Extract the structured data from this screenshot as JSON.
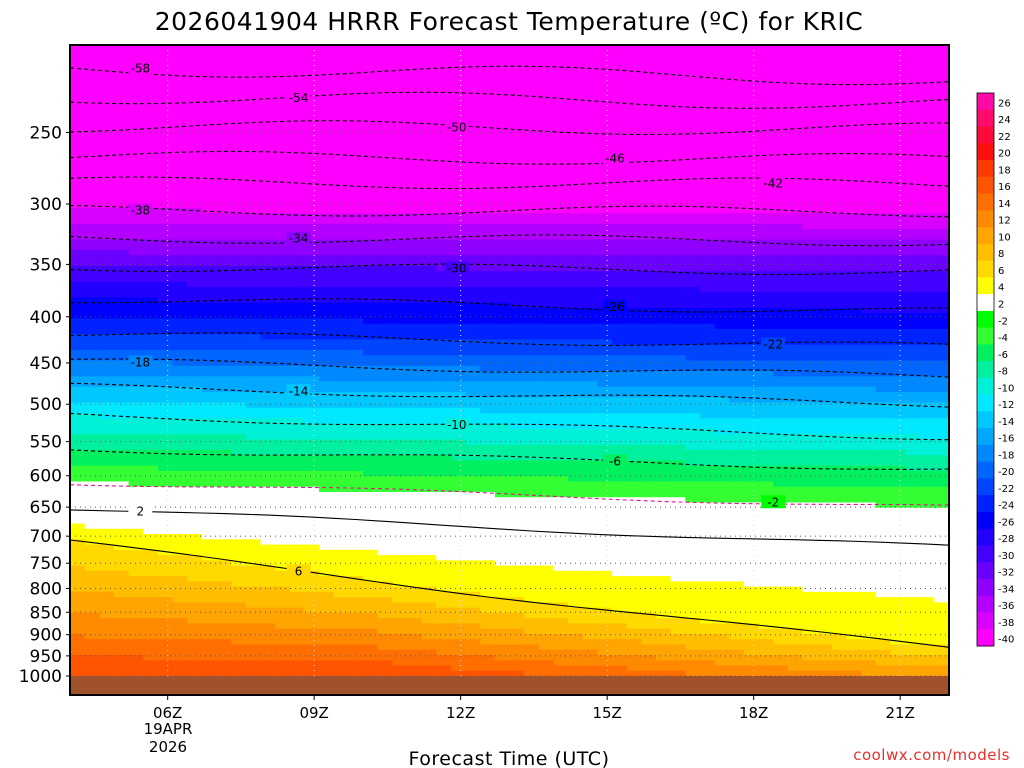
{
  "chart_data": {
    "type": "heatmap",
    "title": "2026041904 HRRR Forecast Temperature (ºC) for KRIC",
    "xlabel": "Forecast Time (UTC)",
    "ylabel": "",
    "x_ticks": [
      "06Z",
      "09Z",
      "12Z",
      "15Z",
      "18Z",
      "21Z"
    ],
    "x_date_lines": [
      "19APR",
      "2026"
    ],
    "xlim_hours": [
      4,
      22
    ],
    "y_ticks": [
      250,
      300,
      350,
      400,
      450,
      500,
      550,
      600,
      650,
      700,
      750,
      800,
      850,
      900,
      950,
      1000
    ],
    "ylim_hpa": [
      200,
      1000
    ],
    "y_scale": "log",
    "grid": true,
    "colorbar": {
      "labels": [
        26,
        24,
        22,
        20,
        18,
        16,
        14,
        12,
        10,
        8,
        6,
        4,
        2,
        -2,
        -4,
        -6,
        -8,
        -10,
        -12,
        -14,
        -16,
        -18,
        -20,
        -22,
        -24,
        -26,
        -28,
        -30,
        -32,
        -34,
        -36,
        -38,
        -40
      ],
      "colors": [
        "#ff0aa6",
        "#ff0b6e",
        "#ff0b3a",
        "#ff1010",
        "#ff3a00",
        "#ff5500",
        "#ff6e00",
        "#ff8a00",
        "#ffa400",
        "#ffbe00",
        "#ffd900",
        "#ffff00",
        "#ffffff",
        "#00ff00",
        "#33ff33",
        "#00f060",
        "#00f0a0",
        "#00f0d8",
        "#00e8ff",
        "#00c8ff",
        "#00a8ff",
        "#0088ff",
        "#0066ff",
        "#0044ff",
        "#0022ff",
        "#0000ff",
        "#2200ff",
        "#4400ff",
        "#6a00ff",
        "#9000ff",
        "#b400ff",
        "#d800ff",
        "#ff00ff"
      ]
    },
    "isotherms": [
      {
        "value": -58,
        "label": "-58",
        "p_start": 212,
        "p_end": 218
      },
      {
        "value": -54,
        "label": "-54",
        "p_start": 228,
        "p_end": 232
      },
      {
        "value": -50,
        "label": "-50",
        "p_start": 246,
        "p_end": 248
      },
      {
        "value": -46,
        "label": "-46",
        "p_start": 266,
        "p_end": 268
      },
      {
        "value": -42,
        "label": "-42",
        "p_start": 284,
        "p_end": 285
      },
      {
        "value": -38,
        "label": "-38",
        "p_start": 305,
        "p_end": 306
      },
      {
        "value": -34,
        "label": "-34",
        "p_start": 327,
        "p_end": 330
      },
      {
        "value": -30,
        "label": "-30",
        "p_start": 352,
        "p_end": 356
      },
      {
        "value": -26,
        "label": "-26",
        "p_start": 382,
        "p_end": 395
      },
      {
        "value": -22,
        "label": "-22",
        "p_start": 418,
        "p_end": 432
      },
      {
        "value": -18,
        "label": "-18",
        "p_start": 448,
        "p_end": 466
      },
      {
        "value": -14,
        "label": "-14",
        "p_start": 478,
        "p_end": 500
      },
      {
        "value": -10,
        "label": "-10",
        "p_start": 514,
        "p_end": 544
      },
      {
        "value": -6,
        "label": "-6",
        "p_start": 560,
        "p_end": 590
      },
      {
        "value": -2,
        "label": "-2",
        "p_start": 610,
        "p_end": 650
      },
      {
        "value": 2,
        "label": "2",
        "p_start": 652,
        "p_end": 720
      },
      {
        "value": 6,
        "label": "6",
        "p_start": 708,
        "p_end": 930
      }
    ],
    "surface_hpa": 1000
  },
  "credit": "coolwx.com/models"
}
